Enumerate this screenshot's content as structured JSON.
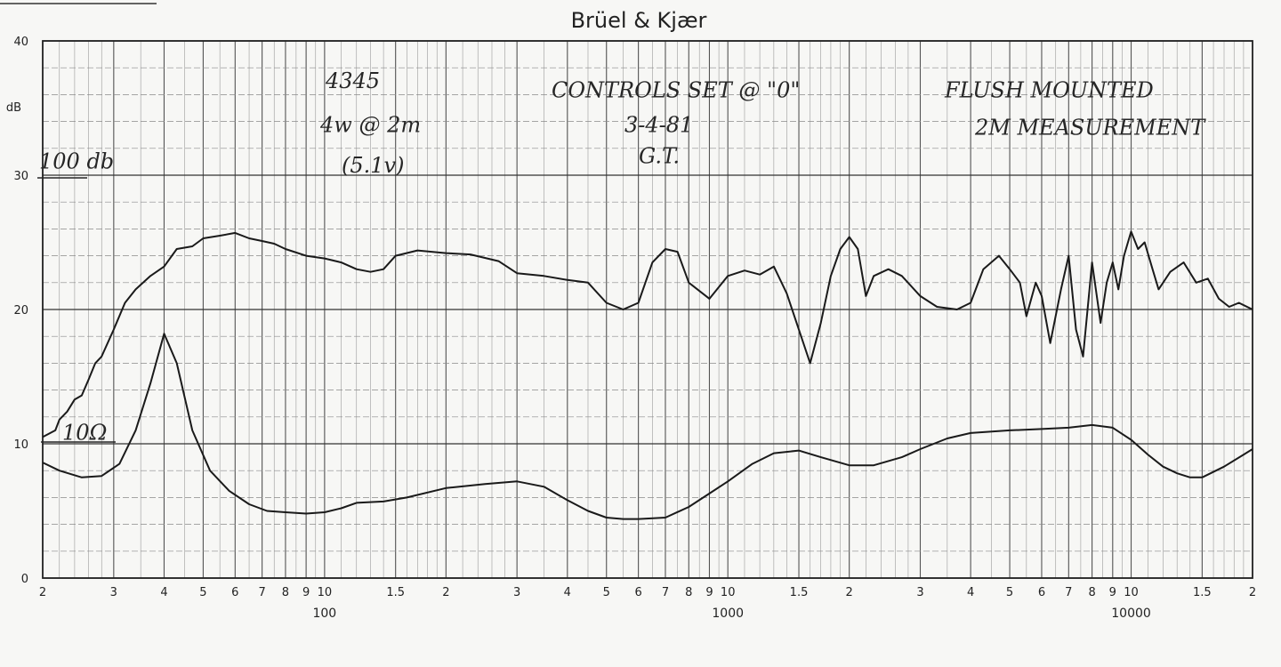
{
  "header": {
    "brand": "Brüel & Kjær"
  },
  "chart_data": {
    "type": "line",
    "xscale": "log",
    "xlim": [
      20,
      20000
    ],
    "ylim": [
      0,
      40
    ],
    "ylabel": "dB",
    "y_ticks": [
      "0",
      "10",
      "20",
      "30",
      "40"
    ],
    "x_tick_values": [
      20,
      30,
      40,
      50,
      60,
      70,
      80,
      90,
      100,
      150,
      200,
      300,
      400,
      500,
      600,
      700,
      800,
      900,
      1000,
      1500,
      2000,
      3000,
      4000,
      5000,
      6000,
      7000,
      8000,
      9000,
      10000,
      15000,
      20000
    ],
    "x_tick_labels": [
      "2",
      "3",
      "4",
      "5",
      "6",
      "7",
      "8",
      "9",
      "10",
      "1.5",
      "2",
      "3",
      "4",
      "5",
      "6",
      "7",
      "8",
      "9",
      "10",
      "1.5",
      "2",
      "3",
      "4",
      "5",
      "6",
      "7",
      "8",
      "9",
      "10",
      "1.5",
      "2"
    ],
    "x_decade_labels": [
      {
        "value": 100,
        "label": "100"
      },
      {
        "value": 1000,
        "label": "1000"
      },
      {
        "value": 10000,
        "label": "10000"
      }
    ],
    "grid": true,
    "annotations": [
      {
        "text": "4345",
        "x": 40,
        "y": 36.5
      },
      {
        "text": "4w @ 2m",
        "x": 40,
        "y": 33.2
      },
      {
        "text": "(5.1v)",
        "x": 40,
        "y": 30.2
      },
      {
        "text": "CONTROLS SET @ \"0\"",
        "x": 350,
        "y": 35.8
      },
      {
        "text": "3-4-81",
        "x": 350,
        "y": 33.2
      },
      {
        "text": "G.T.",
        "x": 350,
        "y": 30.9
      },
      {
        "text": "FLUSH MOUNTED",
        "x": 3500,
        "y": 35.8
      },
      {
        "text": "2M MEASUREMENT",
        "x": 3500,
        "y": 33.0
      },
      {
        "text": "100 db",
        "x": 20,
        "y": 30.5
      },
      {
        "text": "10Ω",
        "x": 20,
        "y": 10.3
      }
    ],
    "series": [
      {
        "color": "#1a1a1a",
        "x": [
          20,
          21.5,
          22,
          23,
          24,
          25,
          26,
          27,
          28,
          30,
          32,
          34,
          37,
          40,
          43,
          47,
          50,
          55,
          60,
          65,
          70,
          75,
          80,
          90,
          100,
          110,
          120,
          130,
          140,
          150,
          170,
          200,
          230,
          270,
          300,
          350,
          400,
          450,
          500,
          550,
          600,
          650,
          700,
          750,
          800,
          900,
          1000,
          1100,
          1200,
          1300,
          1400,
          1500,
          1600,
          1700,
          1800,
          1900,
          2000,
          2100,
          2200,
          2300,
          2500,
          2700,
          3000,
          3300,
          3700,
          4000,
          4300,
          4700,
          5000,
          5300,
          5500,
          5800,
          6000,
          6300,
          6700,
          7000,
          7300,
          7600,
          8000,
          8400,
          8700,
          9000,
          9300,
          9600,
          10000,
          10400,
          10800,
          11300,
          11700,
          12500,
          13500,
          14500,
          15500,
          16500,
          17500,
          18500,
          20000
        ],
        "y": [
          10.5,
          11.0,
          11.8,
          12.4,
          13.3,
          13.6,
          14.8,
          16.0,
          16.5,
          18.5,
          20.5,
          21.5,
          22.5,
          23.2,
          24.5,
          24.7,
          25.3,
          25.5,
          25.7,
          25.3,
          25.1,
          24.9,
          24.5,
          24.0,
          23.8,
          23.5,
          23.0,
          22.8,
          23.0,
          24.0,
          24.4,
          24.2,
          24.1,
          23.6,
          22.7,
          22.5,
          22.2,
          22.0,
          20.5,
          20.0,
          20.5,
          23.5,
          24.5,
          24.3,
          22.0,
          20.8,
          22.5,
          22.9,
          22.6,
          23.2,
          21.2,
          18.5,
          16.0,
          19.0,
          22.5,
          24.5,
          25.4,
          24.5,
          21.0,
          22.5,
          23.0,
          22.5,
          21.0,
          20.2,
          20.0,
          20.5,
          23.0,
          24.0,
          23.0,
          22.0,
          19.5,
          22.0,
          21.0,
          17.5,
          21.5,
          24.0,
          18.5,
          16.5,
          23.5,
          19.0,
          22.0,
          23.5,
          21.5,
          24.0,
          25.8,
          24.5,
          25.0,
          23.0,
          21.5,
          22.8,
          23.5,
          22.0,
          22.3,
          20.8,
          20.2,
          20.5,
          20.0
        ]
      },
      {
        "color": "#1a1a1a",
        "x": [
          20,
          22,
          25,
          28,
          31,
          34,
          37,
          40,
          43,
          47,
          52,
          58,
          65,
          72,
          80,
          90,
          100,
          110,
          120,
          140,
          160,
          200,
          250,
          300,
          350,
          400,
          450,
          500,
          550,
          600,
          700,
          800,
          900,
          1000,
          1150,
          1300,
          1500,
          1700,
          2000,
          2300,
          2700,
          3000,
          3500,
          4000,
          5000,
          6000,
          7000,
          8000,
          9000,
          10000,
          11000,
          12000,
          13000,
          14000,
          15000,
          17000,
          20000
        ],
        "y": [
          8.6,
          8.0,
          7.5,
          7.6,
          8.5,
          11.0,
          14.5,
          18.2,
          16.0,
          11.0,
          8.0,
          6.5,
          5.5,
          5.0,
          4.9,
          4.8,
          4.9,
          5.2,
          5.6,
          5.7,
          6.0,
          6.7,
          7.0,
          7.2,
          6.8,
          5.8,
          5.0,
          4.5,
          4.4,
          4.4,
          4.5,
          5.3,
          6.3,
          7.2,
          8.5,
          9.3,
          9.5,
          9.0,
          8.4,
          8.4,
          9.0,
          9.6,
          10.4,
          10.8,
          11.0,
          11.1,
          11.2,
          11.4,
          11.2,
          10.3,
          9.2,
          8.3,
          7.8,
          7.5,
          7.5,
          8.3,
          9.6
        ]
      }
    ]
  }
}
